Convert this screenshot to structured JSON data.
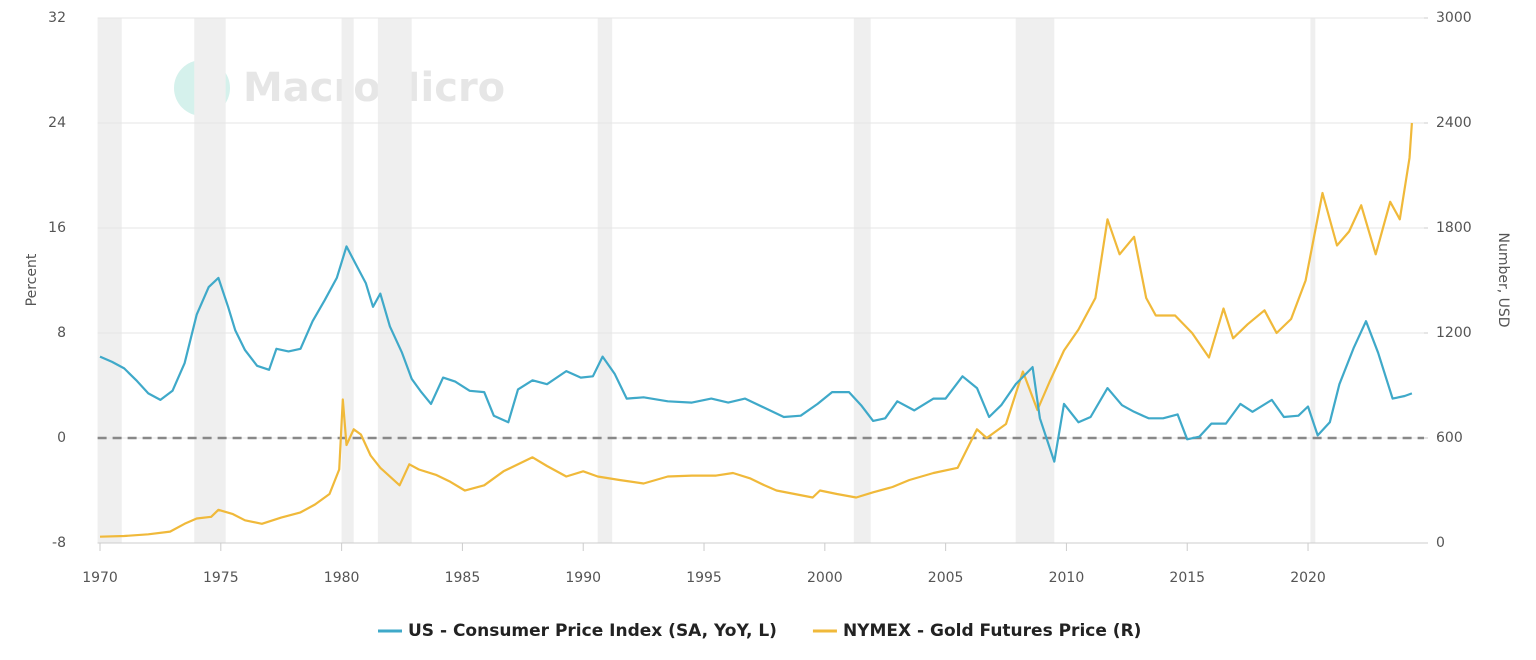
{
  "chart_data": {
    "type": "line",
    "watermark": "MacroMicro",
    "y_label": "Percent",
    "y2_label": "Number, USD",
    "xlim": [
      1969.9,
      2024.8
    ],
    "xticks": [
      1970,
      1975,
      1980,
      1985,
      1990,
      1995,
      2000,
      2005,
      2010,
      2015,
      2020
    ],
    "ylim": [
      -8,
      32
    ],
    "yticks": [
      -8,
      0,
      8,
      16,
      24,
      32
    ],
    "y2lim": [
      0,
      3000
    ],
    "y2ticks": [
      0,
      600,
      1200,
      1800,
      2400,
      3000
    ],
    "grid": true,
    "zero_line": true,
    "legend": "bottom",
    "recessions": [
      [
        1969.9,
        1970.9
      ],
      [
        1973.9,
        1975.2
      ],
      [
        1980.0,
        1980.5
      ],
      [
        1981.5,
        1982.9
      ],
      [
        1990.6,
        1991.2
      ],
      [
        2001.2,
        2001.9
      ],
      [
        2007.9,
        2009.5
      ],
      [
        2020.1,
        2020.3
      ]
    ],
    "series": [
      {
        "name": "US - Consumer Price Index (SA, YoY, L)",
        "color": "#3fa9c9",
        "axis": "y",
        "x": [
          1970,
          1970.5,
          1971,
          1971.5,
          1972,
          1972.5,
          1973,
          1973.5,
          1974,
          1974.5,
          1974.9,
          1975.3,
          1975.6,
          1976,
          1976.5,
          1977,
          1977.3,
          1977.8,
          1978.3,
          1978.8,
          1979.3,
          1979.8,
          1980.2,
          1980.6,
          1981,
          1981.3,
          1981.6,
          1982,
          1982.5,
          1982.9,
          1983.3,
          1983.7,
          1984.2,
          1984.7,
          1985.3,
          1985.9,
          1986.3,
          1986.9,
          1987.3,
          1987.9,
          1988.5,
          1989.3,
          1989.9,
          1990.4,
          1990.8,
          1991.3,
          1991.8,
          1992.5,
          1993.5,
          1994.5,
          1995.3,
          1996,
          1996.7,
          1997.5,
          1998.3,
          1999,
          1999.7,
          2000.3,
          2001,
          2001.5,
          2002,
          2002.5,
          2003,
          2003.7,
          2004.5,
          2005,
          2005.7,
          2006.3,
          2006.8,
          2007.3,
          2007.9,
          2008.6,
          2008.9,
          2009.5,
          2009.9,
          2010.5,
          2011,
          2011.7,
          2012.3,
          2012.8,
          2013.4,
          2014,
          2014.6,
          2015,
          2015.5,
          2016,
          2016.6,
          2017.2,
          2017.7,
          2018.5,
          2019,
          2019.6,
          2020,
          2020.4,
          2020.9,
          2021.3,
          2021.9,
          2022.4,
          2022.9,
          2023.5,
          2024,
          2024.3
        ],
        "values": [
          6.2,
          5.8,
          5.3,
          4.4,
          3.4,
          2.9,
          3.6,
          5.7,
          9.4,
          11.5,
          12.2,
          10.0,
          8.2,
          6.7,
          5.5,
          5.2,
          6.8,
          6.6,
          6.8,
          8.9,
          10.5,
          12.2,
          14.6,
          13.2,
          11.8,
          10.0,
          11.0,
          8.5,
          6.5,
          4.5,
          3.5,
          2.6,
          4.6,
          4.3,
          3.6,
          3.5,
          1.7,
          1.2,
          3.7,
          4.4,
          4.1,
          5.1,
          4.6,
          4.7,
          6.2,
          4.9,
          3.0,
          3.1,
          2.8,
          2.7,
          3.0,
          2.7,
          3.0,
          2.3,
          1.6,
          1.7,
          2.6,
          3.5,
          3.5,
          2.5,
          1.3,
          1.5,
          2.8,
          2.1,
          3.0,
          3.0,
          4.7,
          3.8,
          1.6,
          2.5,
          4.1,
          5.4,
          1.5,
          -1.8,
          2.6,
          1.2,
          1.6,
          3.8,
          2.5,
          2.0,
          1.5,
          1.5,
          1.8,
          -0.1,
          0.1,
          1.1,
          1.1,
          2.6,
          2.0,
          2.9,
          1.6,
          1.7,
          2.4,
          0.2,
          1.2,
          4.1,
          6.9,
          8.9,
          6.5,
          3.0,
          3.2,
          3.4
        ]
      },
      {
        "name": "NYMEX - Gold Futures Price (R)",
        "color": "#f0b93a",
        "axis": "y2",
        "x": [
          1970,
          1971,
          1972,
          1972.9,
          1973.5,
          1974,
          1974.6,
          1974.9,
          1975.5,
          1976,
          1976.7,
          1977.5,
          1978.3,
          1978.9,
          1979.5,
          1979.9,
          1980.05,
          1980.2,
          1980.5,
          1980.8,
          1981.2,
          1981.6,
          1982.4,
          1982.8,
          1983.2,
          1983.9,
          1984.5,
          1985.1,
          1985.9,
          1986.7,
          1987.9,
          1988.5,
          1989.3,
          1990,
          1990.6,
          1991.5,
          1992.5,
          1993.5,
          1994.5,
          1995.5,
          1996.2,
          1996.9,
          1997.5,
          1998,
          1999.5,
          1999.8,
          2000.5,
          2001.3,
          2002,
          2002.8,
          2003.5,
          2004.5,
          2005.5,
          2006.3,
          2006.7,
          2007.5,
          2008.2,
          2008.8,
          2009.3,
          2009.9,
          2010.5,
          2011.2,
          2011.7,
          2012.2,
          2012.8,
          2013.3,
          2013.7,
          2014.5,
          2015.2,
          2015.9,
          2016.5,
          2016.9,
          2017.5,
          2018.2,
          2018.7,
          2019.3,
          2019.9,
          2020.6,
          2021.2,
          2021.7,
          2022.2,
          2022.8,
          2023.4,
          2023.8,
          2024.2,
          2024.3
        ],
        "values": [
          36,
          40,
          50,
          65,
          110,
          140,
          150,
          190,
          165,
          130,
          110,
          145,
          175,
          220,
          280,
          420,
          820,
          560,
          650,
          620,
          500,
          430,
          330,
          450,
          420,
          390,
          350,
          300,
          330,
          410,
          490,
          440,
          380,
          410,
          380,
          360,
          340,
          380,
          385,
          385,
          400,
          370,
          330,
          300,
          260,
          300,
          280,
          260,
          290,
          320,
          360,
          400,
          430,
          650,
          600,
          680,
          980,
          760,
          920,
          1100,
          1220,
          1400,
          1850,
          1650,
          1750,
          1400,
          1300,
          1300,
          1200,
          1060,
          1340,
          1170,
          1250,
          1330,
          1200,
          1280,
          1500,
          2000,
          1700,
          1780,
          1930,
          1650,
          1950,
          1850,
          2200,
          2400
        ]
      }
    ]
  }
}
